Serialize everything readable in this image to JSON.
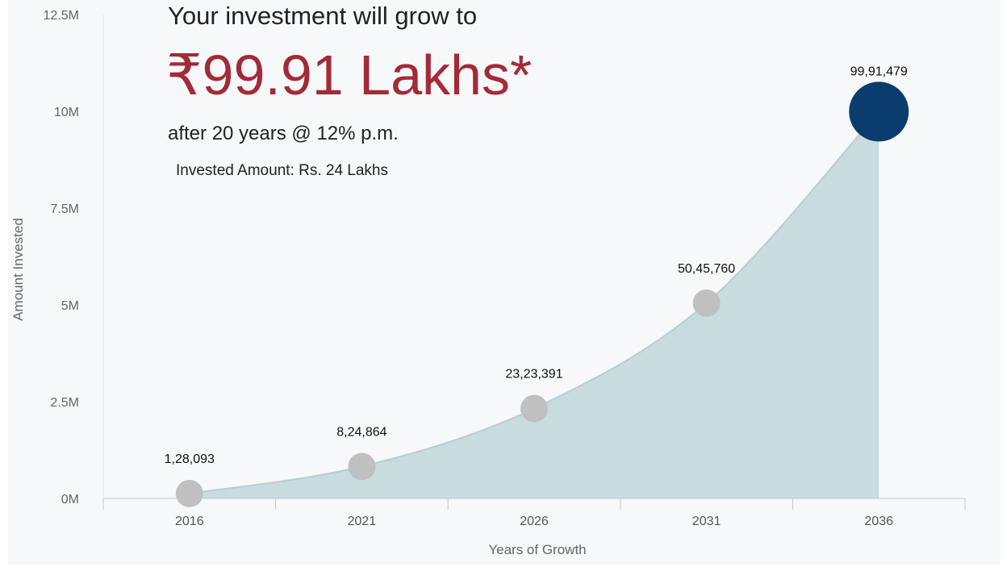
{
  "headline": {
    "intro": "Your investment will grow to",
    "amount": "₹99.91 Lakhs*",
    "subtitle": "after 20 years @ 12% p.m.",
    "invested": "Invested Amount: Rs. 24 Lakhs"
  },
  "colors": {
    "panel_background": "#f6f8fa",
    "area_fill": "#c8dce0",
    "area_stroke": "#b8cdd2",
    "point_default": "#c0c0c0",
    "point_highlight": "#0a3d6e",
    "amount_text": "#a32b36",
    "axis_text": "#666666"
  },
  "chart_data": {
    "type": "area",
    "title": "",
    "xlabel": "Years of Growth",
    "ylabel": "Amount Invested",
    "categories": [
      "2016",
      "2021",
      "2026",
      "2031",
      "2036"
    ],
    "values": [
      128093,
      824864,
      2323391,
      5045760,
      9991479
    ],
    "data_labels": [
      "1,28,093",
      "8,24,864",
      "23,23,391",
      "50,45,760",
      "99,91,479"
    ],
    "highlight_index": 4,
    "y_ticks": [
      {
        "value": 0,
        "label": "0M"
      },
      {
        "value": 2500000,
        "label": "2.5M"
      },
      {
        "value": 5000000,
        "label": "5M"
      },
      {
        "value": 7500000,
        "label": "7.5M"
      },
      {
        "value": 10000000,
        "label": "10M"
      },
      {
        "value": 12500000,
        "label": "12.5M"
      }
    ],
    "ylim": [
      0,
      12500000
    ],
    "grid": false,
    "legend": "none"
  }
}
